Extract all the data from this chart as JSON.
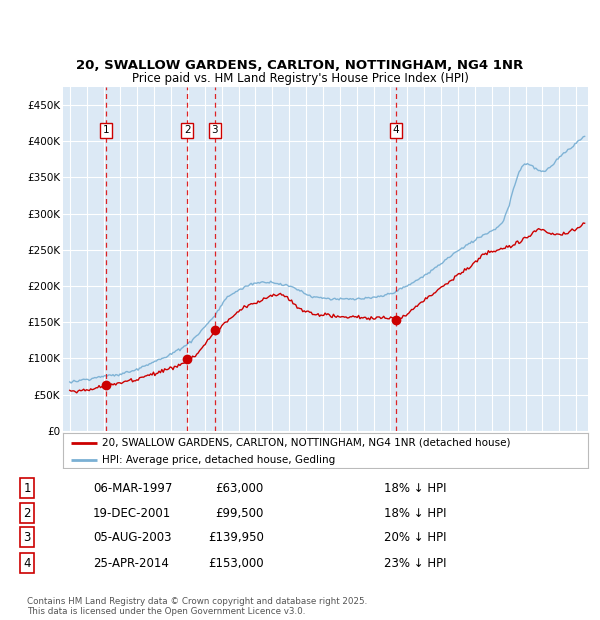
{
  "title1": "20, SWALLOW GARDENS, CARLTON, NOTTINGHAM, NG4 1NR",
  "title2": "Price paid vs. HM Land Registry's House Price Index (HPI)",
  "background_color": "#dce9f5",
  "plot_bg": "#dce9f5",
  "grid_color": "#ffffff",
  "hpi_color": "#7ab0d4",
  "price_color": "#cc0000",
  "marker_color": "#cc0000",
  "sale_dates_year": [
    1997.17,
    2001.96,
    2003.59,
    2014.31
  ],
  "sale_prices": [
    63000,
    99500,
    139950,
    153000
  ],
  "sale_labels": [
    "1",
    "2",
    "3",
    "4"
  ],
  "legend_house": "20, SWALLOW GARDENS, CARLTON, NOTTINGHAM, NG4 1NR (detached house)",
  "legend_hpi": "HPI: Average price, detached house, Gedling",
  "table_data": [
    [
      "1",
      "06-MAR-1997",
      "£63,000",
      "18% ↓ HPI"
    ],
    [
      "2",
      "19-DEC-2001",
      "£99,500",
      "18% ↓ HPI"
    ],
    [
      "3",
      "05-AUG-2003",
      "£139,950",
      "20% ↓ HPI"
    ],
    [
      "4",
      "25-APR-2014",
      "£153,000",
      "23% ↓ HPI"
    ]
  ],
  "footnote": "Contains HM Land Registry data © Crown copyright and database right 2025.\nThis data is licensed under the Open Government Licence v3.0.",
  "ylim": [
    0,
    475000
  ],
  "yticks": [
    0,
    50000,
    100000,
    150000,
    200000,
    250000,
    300000,
    350000,
    400000,
    450000
  ],
  "ytick_labels": [
    "£0",
    "£50K",
    "£100K",
    "£150K",
    "£200K",
    "£250K",
    "£300K",
    "£350K",
    "£400K",
    "£450K"
  ],
  "xlim_start": 1994.6,
  "xlim_end": 2025.7
}
